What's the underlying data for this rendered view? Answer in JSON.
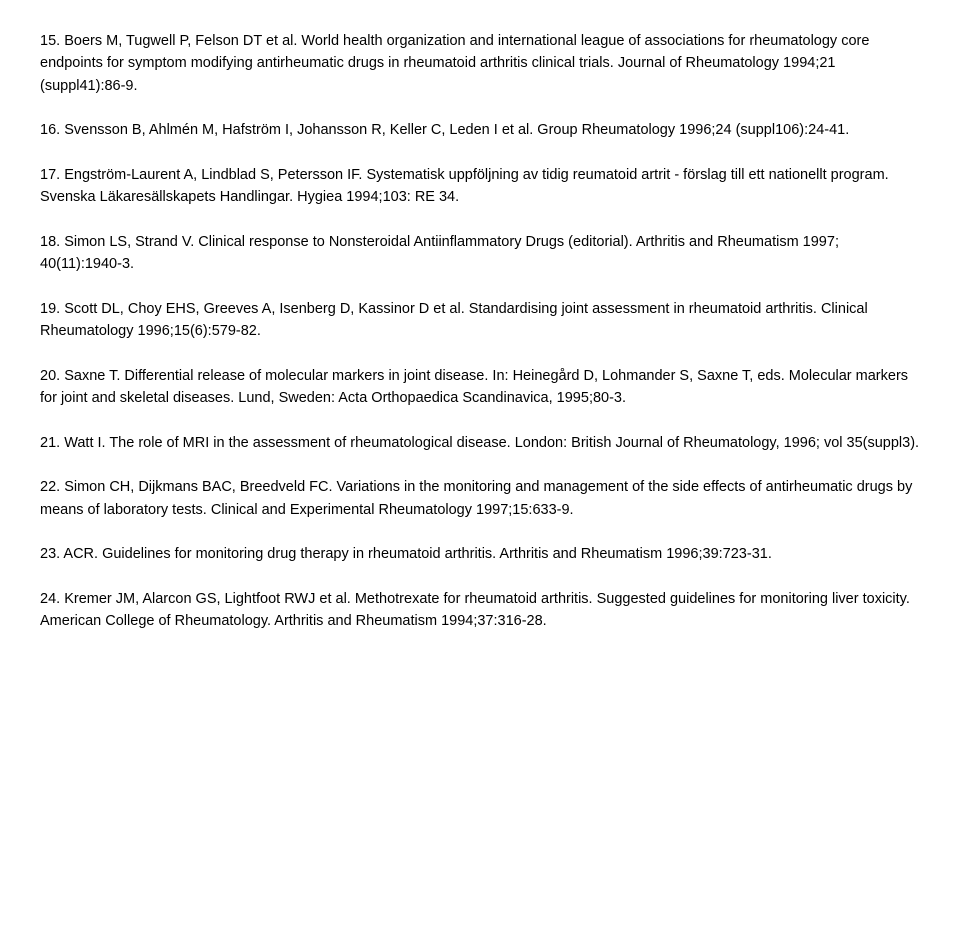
{
  "references": [
    {
      "num": "15.",
      "text": "Boers M, Tugwell P, Felson DT et al. World health organization and international league of associations for rheumatology core endpoints for symptom modifying antirheumatic drugs in rheumatoid arthritis clinical trials. Journal of Rheumatology 1994;21 (suppl41):86-9."
    },
    {
      "num": "16.",
      "text": "Svensson B, Ahlmén M, Hafström I, Johansson R, Keller C, Leden I et al. Group Rheumatology 1996;24 (suppl106):24-41."
    },
    {
      "num": "17.",
      "text": "Engström-Laurent A, Lindblad S, Petersson IF. Systematisk uppföljning av tidig reumatoid artrit - förslag till ett nationellt program. Svenska Läkaresällskapets Handlingar. Hygiea 1994;103: RE 34."
    },
    {
      "num": "18.",
      "text": "Simon LS, Strand V. Clinical response to Nonsteroidal Antiinflammatory Drugs (editorial). Arthritis and Rheumatism 1997; 40(11):1940-3."
    },
    {
      "num": "19.",
      "text": "Scott DL, Choy EHS, Greeves A, Isenberg D, Kassinor D et al. Standardising joint assessment in rheumatoid arthritis. Clinical Rheumatology 1996;15(6):579-82."
    },
    {
      "num": "20.",
      "text": "Saxne T. Differential release of molecular markers in joint disease. In: Heinegård D, Lohmander S, Saxne T, eds. Molecular markers for joint and skeletal diseases. Lund, Sweden: Acta Orthopaedica Scandinavica, 1995;80-3."
    },
    {
      "num": "21.",
      "text": "Watt I. The role of MRI in the assessment of rheumatological disease. London: British Journal of Rheumatology, 1996; vol 35(suppl3)."
    },
    {
      "num": "22.",
      "text": "Simon CH, Dijkmans BAC, Breedveld FC. Variations in the monitoring and management of the side effects of antirheumatic drugs by means of laboratory tests. Clinical and Experimental Rheumatology 1997;15:633-9."
    },
    {
      "num": "23.",
      "text": "ACR. Guidelines for monitoring drug therapy in rheumatoid arthritis. Arthritis and Rheumatism 1996;39:723-31."
    },
    {
      "num": "24.",
      "text": "Kremer JM, Alarcon GS, Lightfoot RWJ et al. Methotrexate for rheumatoid arthritis. Suggested guidelines for monitoring liver toxicity. American College of Rheumatology. Arthritis and Rheumatism 1994;37:316-28."
    }
  ]
}
